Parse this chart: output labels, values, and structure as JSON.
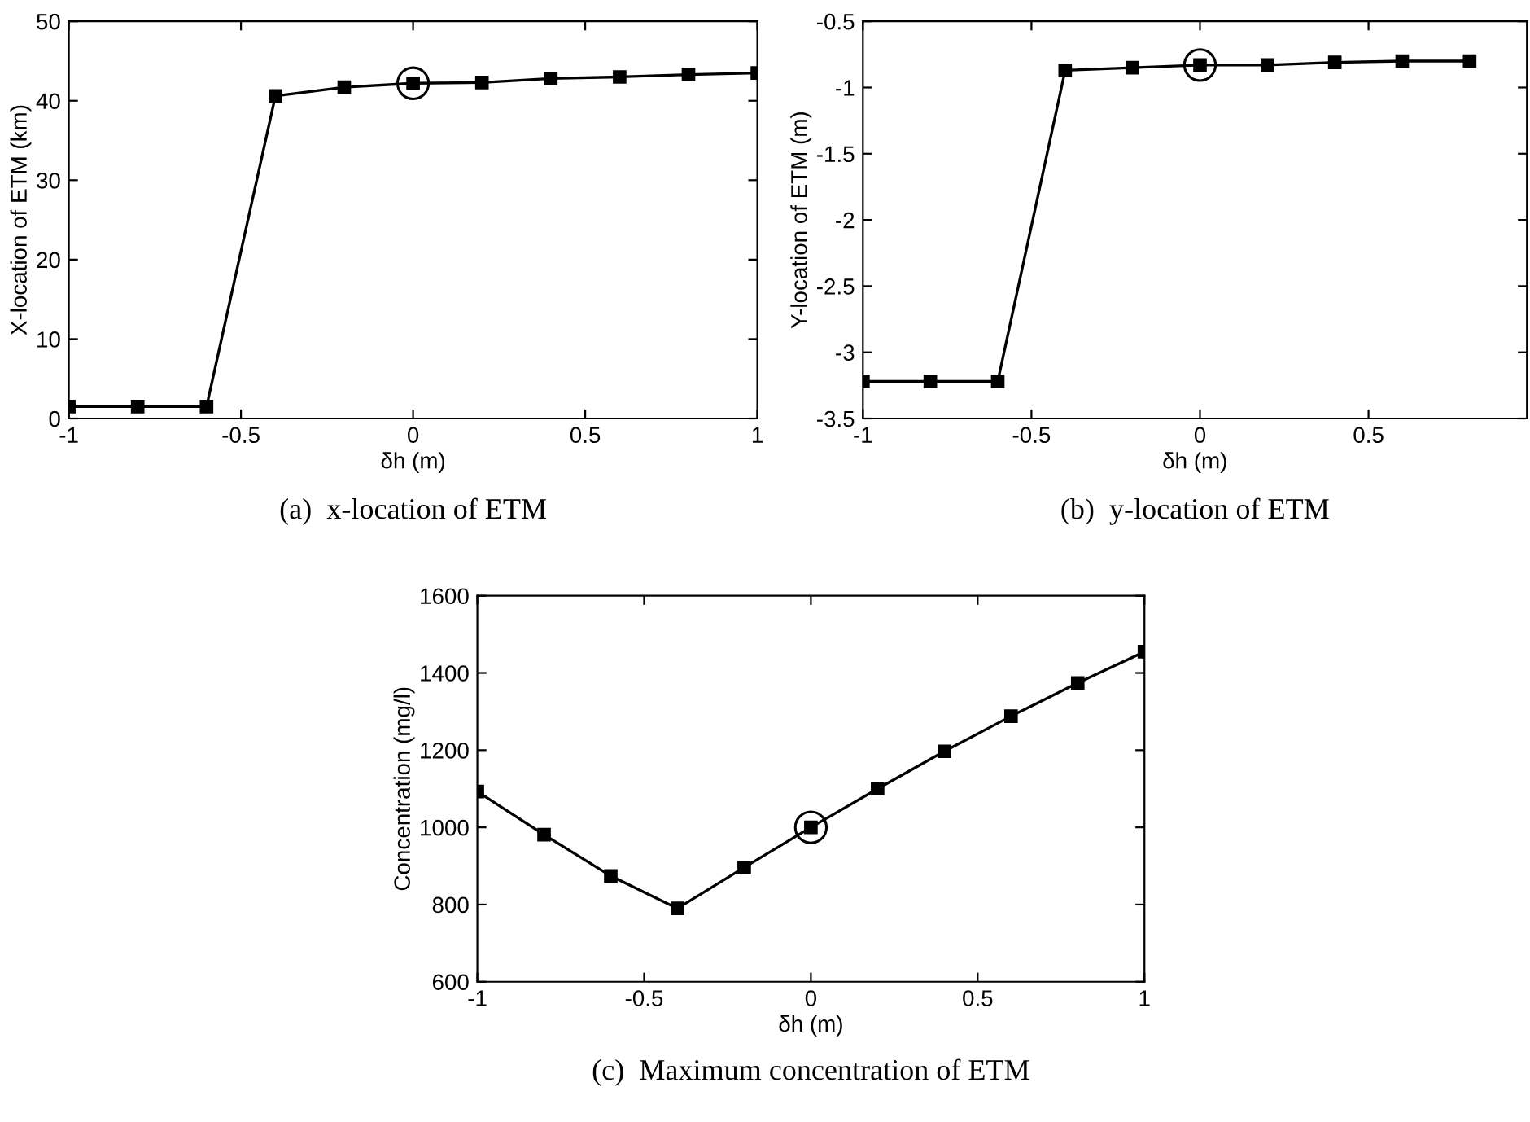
{
  "chart_data": [
    {
      "type": "line",
      "title": "(a)  x-location of ETM",
      "xlabel": "δh (m)",
      "ylabel": "X-location of ETM (km)",
      "xlim": [
        -1,
        1
      ],
      "xticks": [
        -1,
        -0.5,
        0,
        0.5,
        1
      ],
      "ylim": [
        0,
        50
      ],
      "yticks": [
        0,
        10,
        20,
        30,
        40,
        50
      ],
      "grid": false,
      "legend": false,
      "marker": "square",
      "line_style": "solid",
      "series": [
        {
          "color": "#000000",
          "x": [
            -1,
            -0.8,
            -0.6,
            -0.4,
            -0.2,
            0,
            0.2,
            0.4,
            0.6,
            0.8,
            1
          ],
          "values": [
            1.5,
            1.5,
            1.5,
            40.6,
            41.7,
            42.2,
            42.3,
            42.8,
            43.0,
            43.3,
            43.5
          ]
        },
        {
          "type": "scatter",
          "marker": "circle",
          "color": "#000000",
          "x": [
            0
          ],
          "values": [
            42.2
          ]
        }
      ]
    },
    {
      "type": "line",
      "title": "(b)  y-location of ETM",
      "xlabel": "δh (m)",
      "ylabel": "Y-location of ETM (m)",
      "xlim": [
        -1,
        0.97
      ],
      "xticks": [
        -1,
        -0.5,
        0,
        0.5
      ],
      "ylim": [
        -3.5,
        -0.5
      ],
      "yticks": [
        -3.5,
        -3,
        -2.5,
        -2,
        -1.5,
        -1,
        -0.5
      ],
      "grid": false,
      "legend": false,
      "marker": "square",
      "line_style": "solid",
      "series": [
        {
          "color": "#000000",
          "x": [
            -1,
            -0.8,
            -0.6,
            -0.4,
            -0.2,
            0,
            0.2,
            0.4,
            0.6,
            0.8
          ],
          "values": [
            -3.22,
            -3.22,
            -3.22,
            -0.87,
            -0.85,
            -0.83,
            -0.83,
            -0.81,
            -0.8,
            -0.8
          ]
        },
        {
          "type": "scatter",
          "marker": "circle",
          "color": "#000000",
          "x": [
            0
          ],
          "values": [
            -0.83
          ]
        }
      ]
    },
    {
      "type": "line",
      "title": "(c)  Maximum concentration of ETM",
      "xlabel": "δh (m)",
      "ylabel": "Concentration (mg/l)",
      "xlim": [
        -1,
        1
      ],
      "xticks": [
        -1,
        -0.5,
        0,
        0.5,
        1
      ],
      "ylim": [
        600,
        1600
      ],
      "yticks": [
        600,
        800,
        1000,
        1200,
        1400,
        1600
      ],
      "grid": false,
      "legend": false,
      "marker": "square",
      "line_style": "solid",
      "series": [
        {
          "color": "#000000",
          "x": [
            -1,
            -0.8,
            -0.6,
            -0.4,
            -0.2,
            0,
            0.2,
            0.4,
            0.6,
            0.8,
            1
          ],
          "values": [
            1093,
            981,
            874,
            790,
            896,
            1000,
            1100,
            1197,
            1288,
            1374,
            1455
          ]
        },
        {
          "type": "scatter",
          "marker": "circle",
          "color": "#000000",
          "x": [
            0
          ],
          "values": [
            1000
          ]
        }
      ]
    }
  ]
}
